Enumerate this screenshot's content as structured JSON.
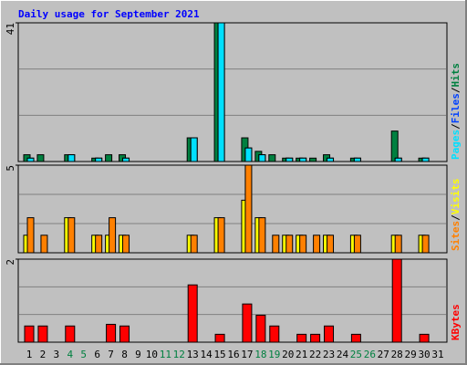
{
  "title": "Daily usage for September 2021",
  "legend_separator": "/",
  "chart_data": [
    {
      "type": "bar",
      "ylim": [
        0,
        41
      ],
      "yticks": [
        41
      ],
      "series": [
        {
          "name": "Hits",
          "color": "#008040",
          "values": [
            2,
            2,
            0,
            2,
            0,
            1,
            2,
            2,
            0,
            0,
            0,
            0,
            7,
            0,
            41,
            0,
            7,
            3,
            2,
            1,
            1,
            1,
            2,
            0,
            1,
            0,
            0,
            9,
            0,
            1,
            0
          ]
        },
        {
          "name": "Files",
          "color": "#0040ff",
          "values": [
            1,
            0,
            0,
            2,
            0,
            1,
            0,
            1,
            0,
            0,
            0,
            0,
            7,
            0,
            41,
            0,
            4,
            2,
            0,
            1,
            1,
            0,
            1,
            0,
            1,
            0,
            0,
            1,
            0,
            1,
            0
          ]
        },
        {
          "name": "Pages",
          "color": "#00e0ff",
          "values": [
            1,
            0,
            0,
            2,
            0,
            1,
            0,
            1,
            0,
            0,
            0,
            0,
            7,
            0,
            41,
            0,
            4,
            2,
            0,
            1,
            1,
            0,
            1,
            0,
            1,
            0,
            0,
            1,
            0,
            1,
            0
          ]
        }
      ]
    },
    {
      "type": "bar",
      "ylim": [
        0,
        5
      ],
      "yticks": [
        5
      ],
      "series": [
        {
          "name": "Visits",
          "color": "#ffff00",
          "values": [
            1,
            0,
            0,
            2,
            0,
            1,
            1,
            1,
            0,
            0,
            0,
            0,
            1,
            0,
            2,
            0,
            3,
            2,
            0,
            1,
            1,
            0,
            1,
            0,
            1,
            0,
            0,
            1,
            0,
            1,
            0
          ]
        },
        {
          "name": "Sites",
          "color": "#ff8000",
          "values": [
            2,
            1,
            0,
            2,
            0,
            1,
            2,
            1,
            0,
            0,
            0,
            0,
            1,
            0,
            2,
            0,
            5,
            2,
            1,
            1,
            1,
            1,
            1,
            0,
            1,
            0,
            0,
            1,
            0,
            1,
            0
          ]
        }
      ]
    },
    {
      "type": "bar",
      "ylim": [
        0,
        2
      ],
      "yticks": [
        2
      ],
      "categories": [
        "1",
        "2",
        "3",
        "4",
        "5",
        "6",
        "7",
        "8",
        "9",
        "10",
        "11",
        "12",
        "13",
        "14",
        "15",
        "16",
        "17",
        "18",
        "19",
        "20",
        "21",
        "22",
        "23",
        "24",
        "25",
        "26",
        "27",
        "28",
        "29",
        "30",
        "31"
      ],
      "highlight_categories": [
        "4",
        "5",
        "11",
        "12",
        "18",
        "19",
        "25",
        "26"
      ],
      "highlight_color": "#008040",
      "series": [
        {
          "name": "KBytes",
          "color": "#ff0000",
          "values": [
            0.39,
            0.39,
            0,
            0.39,
            0,
            0,
            0.43,
            0.39,
            0,
            0,
            0,
            0,
            1.38,
            0,
            0.19,
            0,
            0.92,
            0.65,
            0.39,
            0,
            0.19,
            0.19,
            0.39,
            0,
            0.19,
            0,
            0,
            2.0,
            0,
            0.19,
            0
          ]
        }
      ]
    }
  ]
}
